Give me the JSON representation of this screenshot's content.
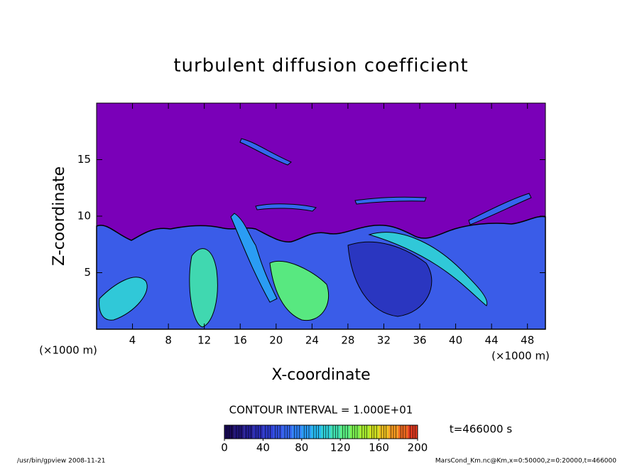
{
  "chart_data": {
    "type": "contour",
    "title": "turbulent diffusion coefficient",
    "xlabel": "X-coordinate",
    "ylabel": "Z-coordinate",
    "x_unit_label": "(×1000 m)",
    "y_unit_label": "(×1000 m)",
    "xlim": [
      0,
      50
    ],
    "ylim": [
      0,
      20
    ],
    "xticks": [
      4,
      8,
      12,
      16,
      20,
      24,
      28,
      32,
      36,
      40,
      44,
      48
    ],
    "yticks": [
      5,
      10,
      15
    ],
    "contour_interval_label": "CONTOUR INTERVAL = 1.000E+01",
    "time_label": "t=466000 s",
    "colorbar": {
      "lim": [
        0,
        200
      ],
      "ticks": [
        0,
        40,
        80,
        120,
        160,
        200
      ],
      "colors": [
        "#1a0a5a",
        "#20147a",
        "#241e96",
        "#2a2cb4",
        "#2e3ccc",
        "#3250e0",
        "#3466ee",
        "#2e80f4",
        "#2a9cf4",
        "#28b8ee",
        "#30d0d8",
        "#40e0b0",
        "#58ec80",
        "#7cf050",
        "#a8ec30",
        "#d0e020",
        "#f0c020",
        "#f89a20",
        "#f06a20",
        "#e03a20"
      ]
    },
    "footer_left": "/usr/bin/gpview  2008-11-21",
    "footer_right": "MarsCond_Km.nc@Km,x=0:50000,z=0:20000,t=466000"
  }
}
